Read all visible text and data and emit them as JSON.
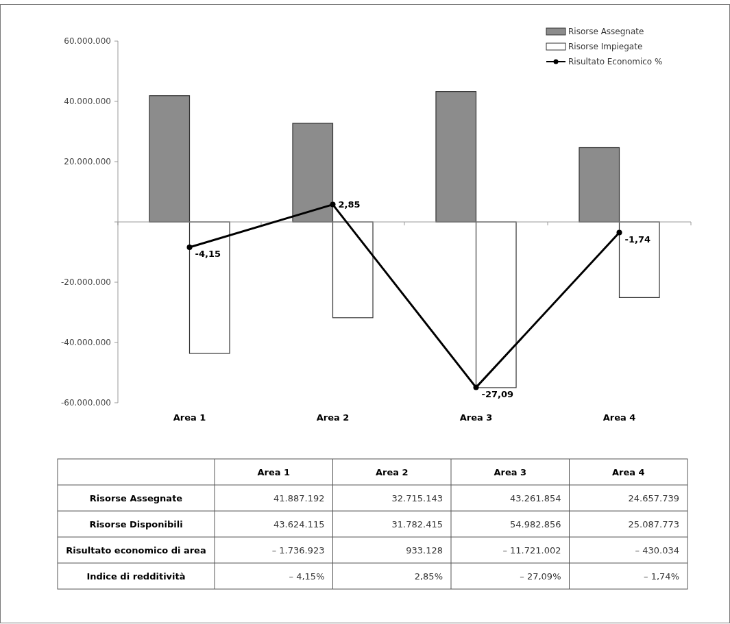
{
  "chart_data": [
    {
      "type": "bar",
      "categories": [
        "Area 1",
        "Area 2",
        "Area 3",
        "Area 4"
      ],
      "series": [
        {
          "name": "Risorse Assegnate",
          "color": "#8c8c8c",
          "values": [
            41887192,
            32715143,
            43261854,
            24657739
          ]
        },
        {
          "name": "Risorse Impiegate",
          "color": "#ffffff",
          "values": [
            -43624115,
            -31782415,
            -54982856,
            -25087773
          ]
        },
        {
          "name": "Risultato Economico %",
          "type": "line",
          "axis": "y2",
          "color": "#000000",
          "marker": "circle",
          "values": [
            -4.15,
            2.85,
            -27.09,
            -1.74
          ],
          "value_labels": [
            "-4,15",
            "2,85",
            "-27,09",
            "-1,74"
          ]
        }
      ],
      "ylim": [
        -60000000,
        60000000
      ],
      "yticks": [
        {
          "value": 60000000,
          "label": "60.000.000"
        },
        {
          "value": 40000000,
          "label": "40.000.000"
        },
        {
          "value": 20000000,
          "label": "20.000.000"
        },
        {
          "value": 0,
          "label": null
        },
        {
          "value": -20000000,
          "label": "-20.000.000"
        },
        {
          "value": -40000000,
          "label": "-40.000.000"
        },
        {
          "value": -60000000,
          "label": "-60.000.000"
        }
      ],
      "y2lim": [
        -29.6,
        29.6
      ],
      "legend": "top right"
    },
    {
      "type": "other",
      "categories": [
        "Area 1",
        "Area 2",
        "Area 3",
        "Area 4"
      ],
      "y_categories": [
        "Risorse Assegnate",
        "Risorse Disponibili",
        "Risultato economico di area",
        "Indice di redditività"
      ],
      "cell_labels": [
        [
          "41.887.192",
          "32.715.143",
          "43.261.854",
          "24.657.739"
        ],
        [
          "43.624.115",
          "31.782.415",
          "54.982.856",
          "25.087.773"
        ],
        [
          "– 1.736.923",
          "933.128",
          "– 11.721.002",
          "– 430.034"
        ],
        [
          "– 4,15%",
          "2,85%",
          "– 27,09%",
          "– 1,74%"
        ]
      ]
    }
  ]
}
